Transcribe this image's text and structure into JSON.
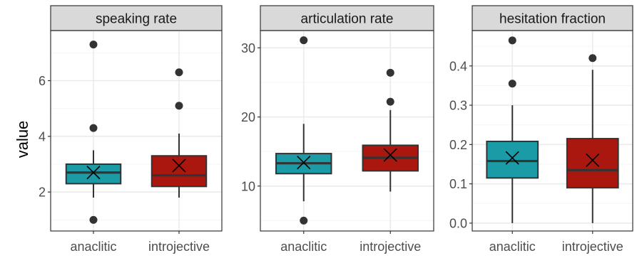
{
  "ylabel": "value",
  "colors": {
    "anaclitic": "#1a9ba6",
    "introjective": "#a9170f",
    "strip": "#d9d9d9",
    "frame": "#333333",
    "grid_major": "#ebebeb",
    "grid_minor": "#f5f5f5",
    "point": "#333333",
    "tick_text": "#4d4d4d"
  },
  "chart_data": [
    {
      "type": "box",
      "title": "speaking rate",
      "categories": [
        "anaclitic",
        "introjective"
      ],
      "ylim": [
        0.6,
        7.8
      ],
      "yticks": [
        2,
        4,
        6
      ],
      "yticklabels": [
        "2",
        "4",
        "6"
      ],
      "minor_ticks": [
        1,
        3,
        5,
        7
      ],
      "boxes": [
        {
          "name": "anaclitic",
          "whisker_low": 1.8,
          "q1": 2.3,
          "median": 2.7,
          "q3": 3.0,
          "whisker_high": 3.5,
          "mean": 2.7,
          "outliers": [
            1.0,
            4.3,
            7.3
          ]
        },
        {
          "name": "introjective",
          "whisker_low": 1.8,
          "q1": 2.2,
          "median": 2.6,
          "q3": 3.3,
          "whisker_high": 4.1,
          "mean": 2.95,
          "outliers": [
            5.1,
            6.3
          ]
        }
      ]
    },
    {
      "type": "box",
      "title": "articulation rate",
      "categories": [
        "anaclitic",
        "introjective"
      ],
      "ylim": [
        3.5,
        32.5
      ],
      "yticks": [
        10,
        20,
        30
      ],
      "yticklabels": [
        "10",
        "20",
        "30"
      ],
      "minor_ticks": [
        5,
        15,
        25
      ],
      "boxes": [
        {
          "name": "anaclitic",
          "whisker_low": 7.8,
          "q1": 11.8,
          "median": 13.3,
          "q3": 14.7,
          "whisker_high": 19.0,
          "mean": 13.4,
          "outliers": [
            5.0,
            31.1
          ]
        },
        {
          "name": "introjective",
          "whisker_low": 9.2,
          "q1": 12.2,
          "median": 14.1,
          "q3": 15.9,
          "whisker_high": 21.0,
          "mean": 14.5,
          "outliers": [
            22.2,
            26.4
          ]
        }
      ]
    },
    {
      "type": "box",
      "title": "hesitation fraction",
      "categories": [
        "anaclitic",
        "introjective"
      ],
      "ylim": [
        -0.02,
        0.49
      ],
      "yticks": [
        0.0,
        0.1,
        0.2,
        0.3,
        0.4
      ],
      "yticklabels": [
        "0.0",
        "0.1",
        "0.2",
        "0.3",
        "0.4"
      ],
      "minor_ticks": [
        0.05,
        0.15,
        0.25,
        0.35,
        0.45
      ],
      "boxes": [
        {
          "name": "anaclitic",
          "whisker_low": 0.0,
          "q1": 0.115,
          "median": 0.158,
          "q3": 0.208,
          "whisker_high": 0.3,
          "mean": 0.166,
          "outliers": [
            0.355,
            0.465
          ]
        },
        {
          "name": "introjective",
          "whisker_low": 0.0,
          "q1": 0.09,
          "median": 0.135,
          "q3": 0.215,
          "whisker_high": 0.39,
          "mean": 0.16,
          "outliers": [
            0.42
          ]
        }
      ]
    }
  ]
}
